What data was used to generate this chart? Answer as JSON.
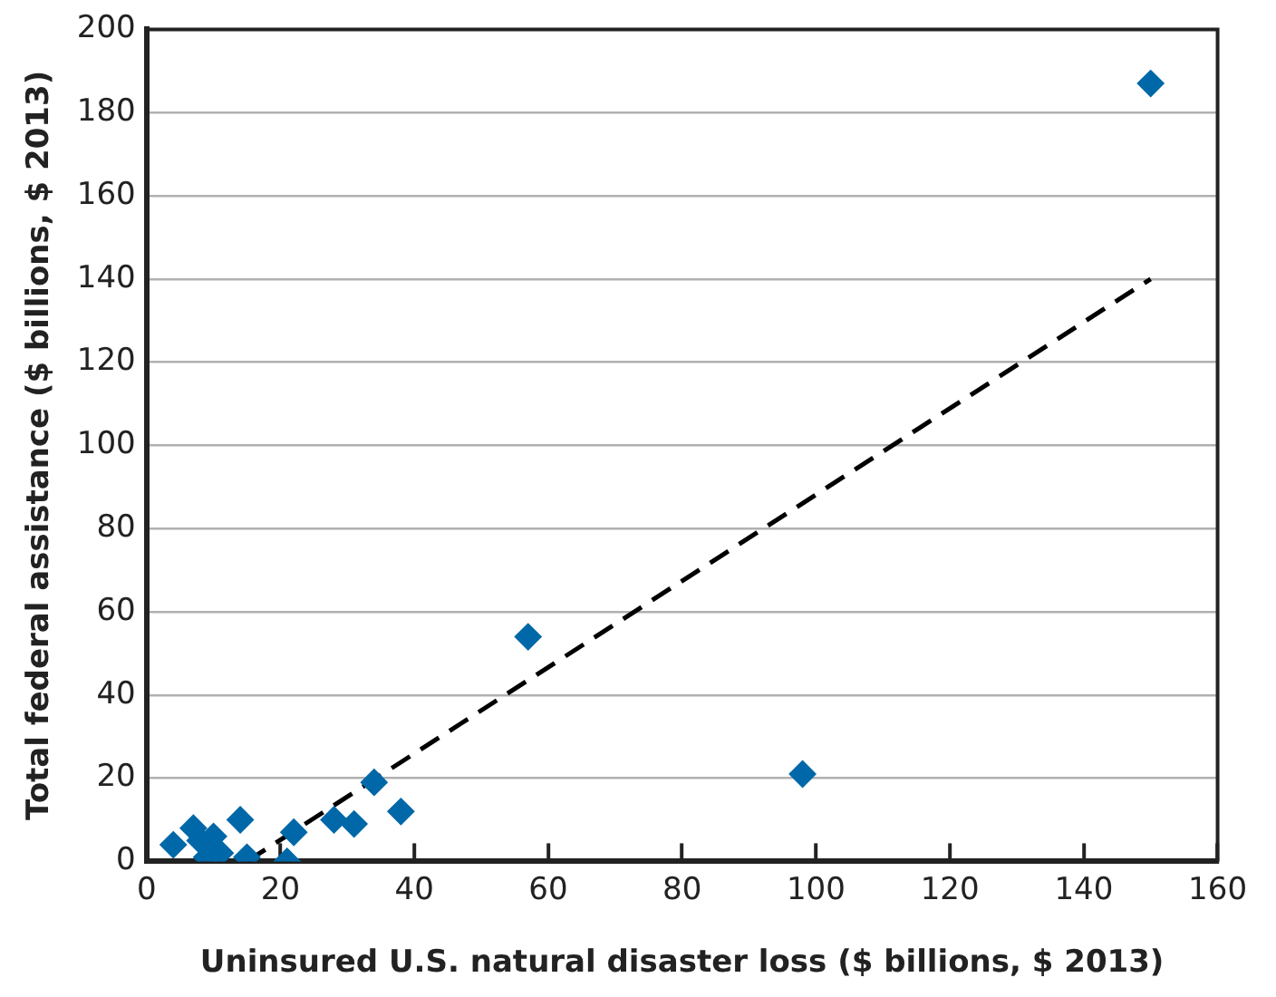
{
  "chart_data": {
    "type": "scatter",
    "xlabel": "Uninsured U.S. natural disaster loss ($ billions, $ 2013)",
    "ylabel": "Total federal assistance ($ billions, $ 2013)",
    "xlim": [
      0,
      160
    ],
    "xticks": [
      0,
      20,
      40,
      60,
      80,
      100,
      120,
      140,
      160
    ],
    "ylim": [
      0,
      200
    ],
    "yticks": [
      0,
      20,
      40,
      60,
      80,
      100,
      120,
      140,
      160,
      180,
      200
    ],
    "grid": "y",
    "legend": false,
    "series": [
      {
        "type": "scatter",
        "color": "#0068a8",
        "marker": "diamond",
        "x": [
          4,
          7,
          8,
          9,
          10,
          11,
          14,
          15,
          21,
          22,
          28,
          31,
          34,
          38,
          57,
          98,
          150
        ],
        "values": [
          4,
          8,
          5,
          1,
          6,
          2,
          10,
          1,
          0,
          7,
          10,
          9,
          19,
          12,
          54,
          21,
          187
        ]
      },
      {
        "type": "line",
        "color": "#000000",
        "marker": "none",
        "line_style": "dashed",
        "x": [
          15,
          150
        ],
        "values": [
          0,
          140
        ]
      }
    ]
  }
}
